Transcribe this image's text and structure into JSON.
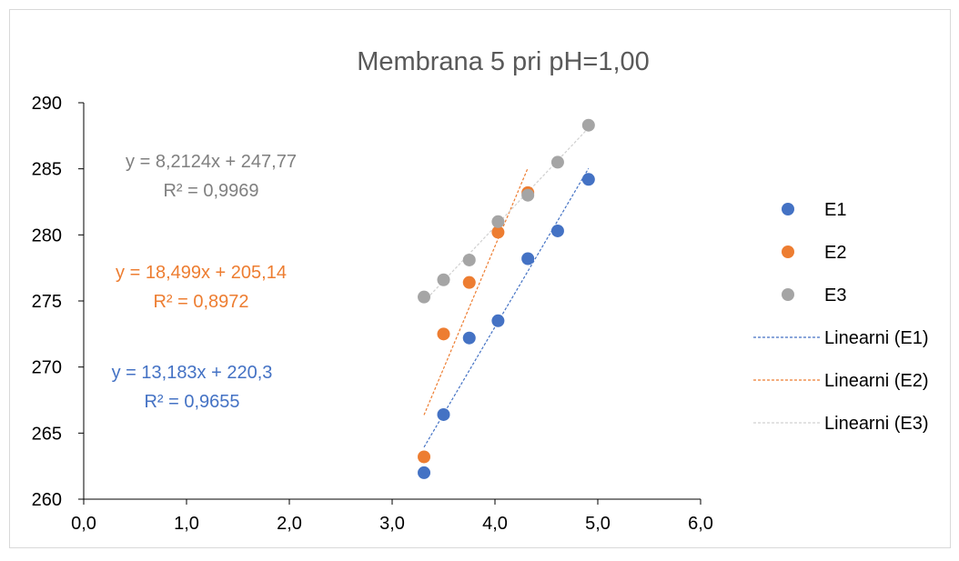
{
  "chart_data": {
    "type": "scatter",
    "title": "Membrana 5 pri pH=1,00",
    "xlabel": "",
    "ylabel": "",
    "xlim": [
      0,
      6
    ],
    "ylim": [
      260,
      290
    ],
    "x_ticks": [
      "0,0",
      "1,0",
      "2,0",
      "3,0",
      "4,0",
      "5,0",
      "6,0"
    ],
    "y_ticks": [
      "260",
      "265",
      "270",
      "275",
      "280",
      "285",
      "290"
    ],
    "grid": false,
    "legend_position": "right",
    "series": [
      {
        "name": "E1",
        "color": "#4472C4",
        "points": [
          [
            3.31,
            262.0
          ],
          [
            3.5,
            266.4
          ],
          [
            3.75,
            272.2
          ],
          [
            4.03,
            273.5
          ],
          [
            4.32,
            278.2
          ],
          [
            4.61,
            280.3
          ],
          [
            4.91,
            284.2
          ]
        ]
      },
      {
        "name": "E2",
        "color": "#ED7D31",
        "points": [
          [
            3.31,
            263.2
          ],
          [
            3.5,
            272.5
          ],
          [
            3.75,
            276.4
          ],
          [
            4.03,
            280.2
          ],
          [
            4.32,
            283.2
          ]
        ]
      },
      {
        "name": "E3",
        "color": "#A5A5A5",
        "points": [
          [
            3.31,
            275.3
          ],
          [
            3.5,
            276.6
          ],
          [
            3.75,
            278.1
          ],
          [
            4.03,
            281.0
          ],
          [
            4.32,
            283.0
          ],
          [
            4.61,
            285.5
          ],
          [
            4.91,
            288.3
          ]
        ]
      }
    ],
    "trendlines": [
      {
        "name": "Linearni (E1)",
        "series": "E1",
        "color": "#4472C4",
        "slope": 13.183,
        "intercept": 220.3,
        "x_range": [
          3.31,
          4.91
        ],
        "equation": "y = 13,183x + 220,3",
        "r2": "R² = 0,9655"
      },
      {
        "name": "Linearni (E2)",
        "series": "E2",
        "color": "#ED7D31",
        "slope": 18.499,
        "intercept": 205.14,
        "x_range": [
          3.31,
          4.32
        ],
        "equation": "y = 18,499x + 205,14",
        "r2": "R² = 0,8972"
      },
      {
        "name": "Linearni (E3)",
        "series": "E3",
        "color": "#D0D0D0",
        "slope": 8.2124,
        "intercept": 247.77,
        "x_range": [
          3.31,
          4.91
        ],
        "equation": "y = 8,2124x + 247,77",
        "r2": "R² = 0,9969"
      }
    ],
    "equation_colors": {
      "E1": "#4472C4",
      "E2": "#ED7D31",
      "E3": "#7F7F7F"
    }
  }
}
